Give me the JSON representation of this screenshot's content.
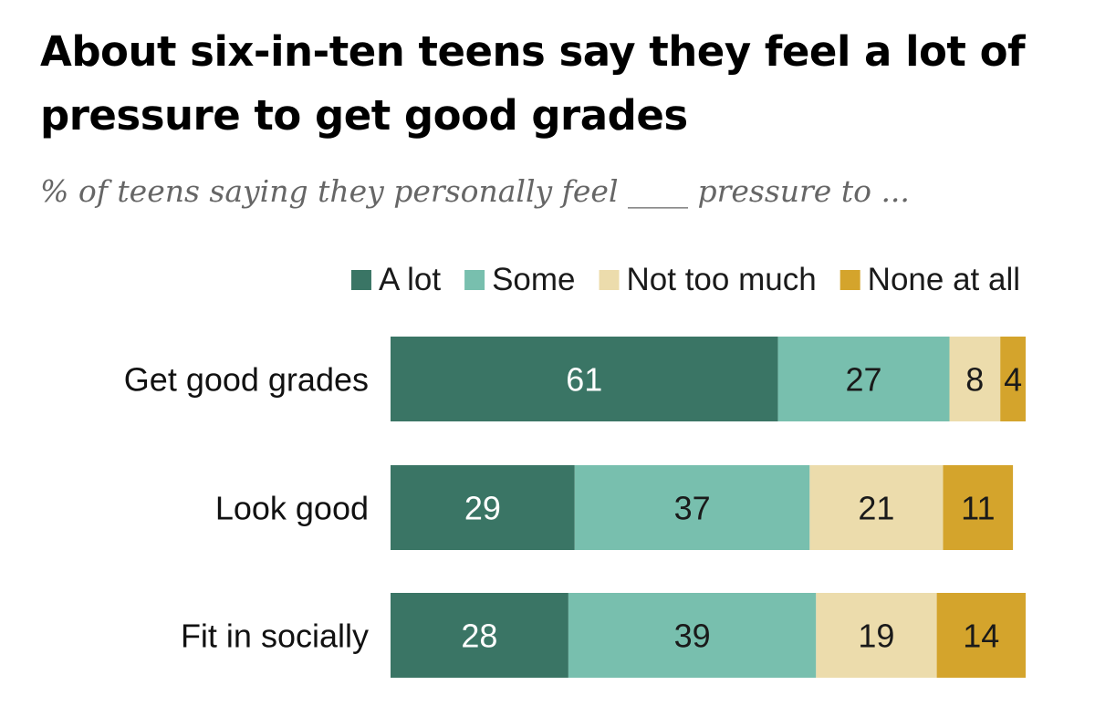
{
  "title": "About six-in-ten teens say they feel a lot of pressure to get good grades",
  "subtitle": "% of teens saying they personally feel ____ pressure to ...",
  "chart_data": {
    "type": "bar",
    "orientation": "horizontal",
    "stacked": true,
    "categories": [
      "Get good grades",
      "Look good",
      "Fit in socially"
    ],
    "series": [
      {
        "name": "A lot",
        "values": [
          61,
          29,
          28
        ],
        "color": "#3a7565",
        "label_color": "#ffffff"
      },
      {
        "name": "Some",
        "values": [
          27,
          37,
          39
        ],
        "color": "#78bfae",
        "label_color": "#1a1a1a"
      },
      {
        "name": "Not too much",
        "values": [
          8,
          21,
          19
        ],
        "color": "#ecdcac",
        "label_color": "#1a1a1a"
      },
      {
        "name": "None at all",
        "values": [
          4,
          11,
          14
        ],
        "color": "#d4a42c",
        "label_color": "#1a1a1a"
      }
    ],
    "xlim": [
      0,
      100
    ],
    "grid": false,
    "legend": "top-right",
    "data_labels": true
  }
}
